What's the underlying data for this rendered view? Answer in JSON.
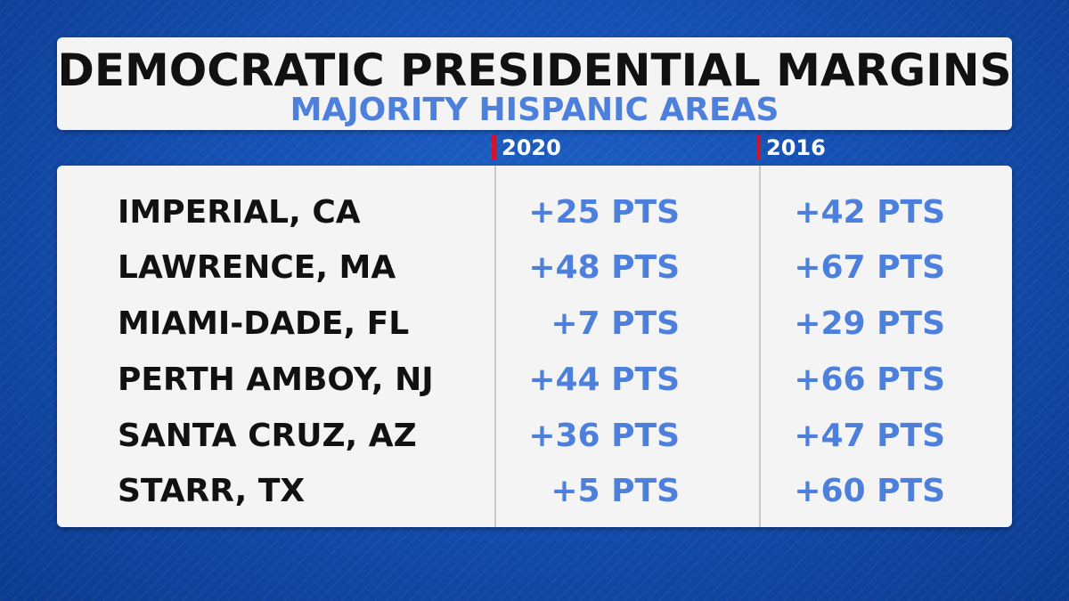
{
  "colors": {
    "accent_blue": "#4d7fdc",
    "header_tick_red": "#d0142b",
    "text_dark": "#111111",
    "background_blue": "#1550b3"
  },
  "header": {
    "title": "DEMOCRATIC PRESIDENTIAL MARGINS",
    "subtitle": "MAJORITY HISPANIC AREAS"
  },
  "chart_data": {
    "type": "table",
    "title": "DEMOCRATIC PRESIDENTIAL MARGINS",
    "subtitle": "MAJORITY HISPANIC AREAS",
    "columns": [
      "2020",
      "2016"
    ],
    "rows": [
      {
        "area": "IMPERIAL, CA",
        "v2020": "+25 PTS",
        "v2016": "+42 PTS"
      },
      {
        "area": "LAWRENCE, MA",
        "v2020": "+48 PTS",
        "v2016": "+67 PTS"
      },
      {
        "area": "MIAMI-DADE, FL",
        "v2020": "+7 PTS",
        "v2016": "+29 PTS"
      },
      {
        "area": "PERTH AMBOY, NJ",
        "v2020": "+44 PTS",
        "v2016": "+66 PTS"
      },
      {
        "area": "SANTA CRUZ, AZ",
        "v2020": "+36 PTS",
        "v2016": "+47 PTS"
      },
      {
        "area": "STARR, TX",
        "v2020": "+5 PTS",
        "v2016": "+60 PTS"
      }
    ]
  }
}
